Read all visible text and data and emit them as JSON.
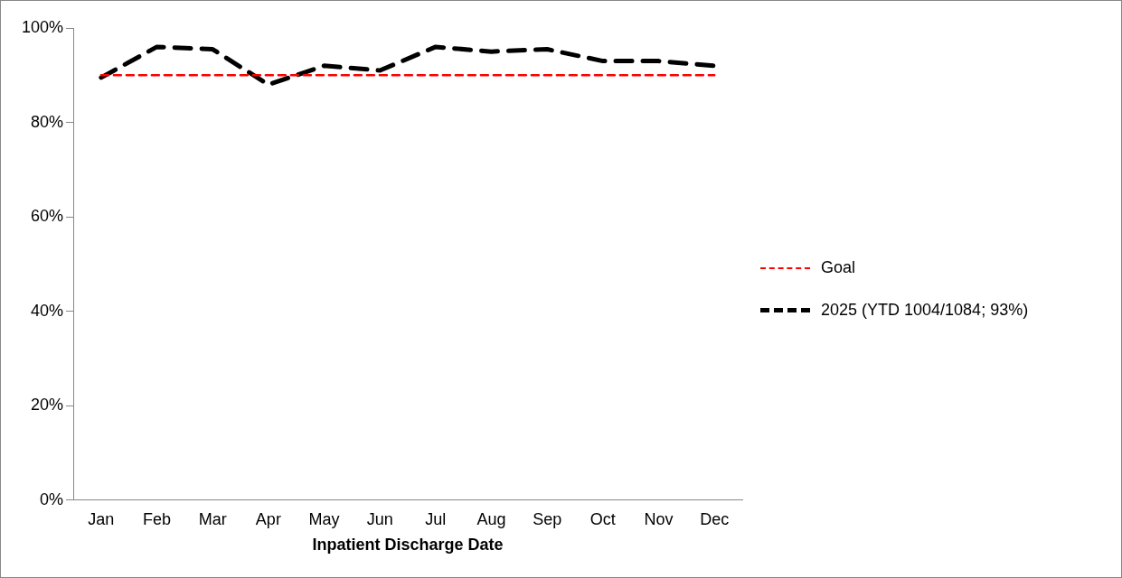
{
  "chart_data": {
    "type": "line",
    "xlabel": "Inpatient Discharge Date",
    "categories": [
      "Jan",
      "Feb",
      "Mar",
      "Apr",
      "May",
      "Jun",
      "Jul",
      "Aug",
      "Sep",
      "Oct",
      "Nov",
      "Dec"
    ],
    "series": [
      {
        "name": "Goal",
        "color": "#ff0000",
        "line_style": "dashed",
        "values": [
          90,
          90,
          90,
          90,
          90,
          90,
          90,
          90,
          90,
          90,
          90,
          90
        ]
      },
      {
        "name": "2025 (YTD 1004/1084; 93%)",
        "color": "#000000",
        "line_style": "dashed",
        "values": [
          89.5,
          96,
          95.5,
          88,
          92,
          91,
          96,
          95,
          95.5,
          93,
          93,
          92
        ]
      }
    ],
    "ylim": [
      0,
      100
    ],
    "yticks": [
      {
        "value": 0,
        "label": "0%"
      },
      {
        "value": 20,
        "label": "20%"
      },
      {
        "value": 40,
        "label": "40%"
      },
      {
        "value": 60,
        "label": "60%"
      },
      {
        "value": 80,
        "label": "80%"
      },
      {
        "value": 100,
        "label": "100%"
      }
    ],
    "grid": false,
    "legend": "right",
    "marker": "none"
  }
}
